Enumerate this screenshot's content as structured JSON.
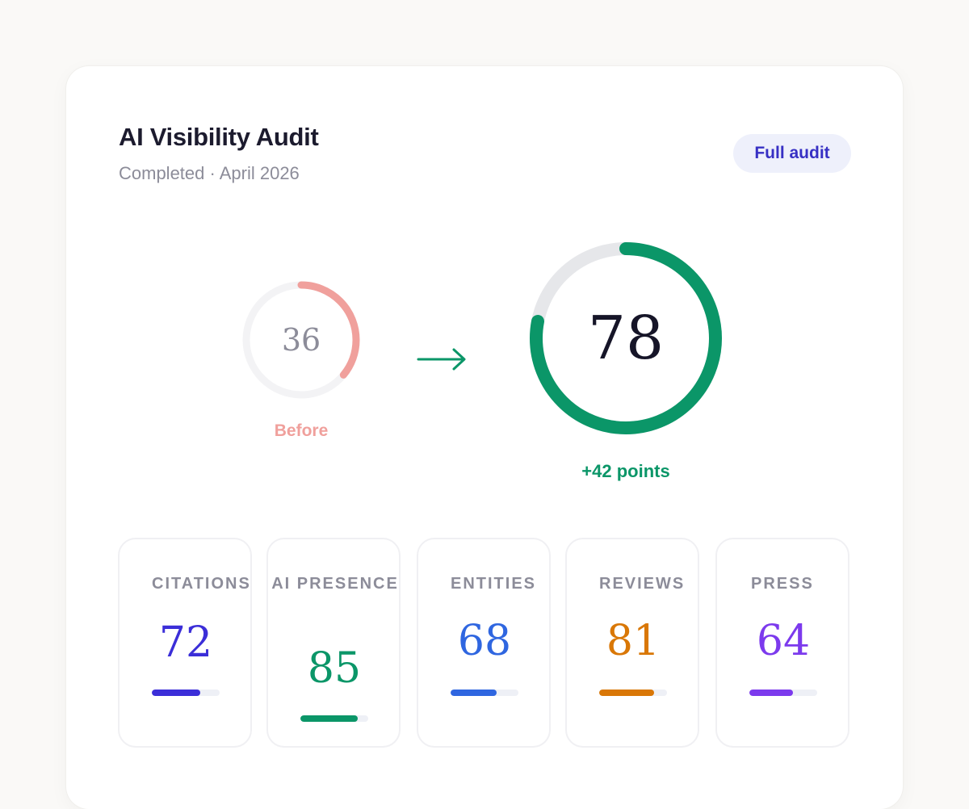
{
  "header": {
    "title": "AI Visibility Audit",
    "subtitle": "Completed · April 2026",
    "badge": "Full audit"
  },
  "scores": {
    "before": {
      "value": "36",
      "label": "Before",
      "fraction": 0.36,
      "color": "#f0a09c"
    },
    "after": {
      "value": "78",
      "label": "+42 points",
      "fraction": 0.78,
      "color": "#0b9668"
    }
  },
  "metrics": [
    {
      "label": "CITATIONS",
      "value": "72",
      "fraction": 0.72,
      "color": "#3b2ed8"
    },
    {
      "label": "AI PRESENCE",
      "value": "85",
      "fraction": 0.85,
      "color": "#0b9668"
    },
    {
      "label": "ENTITIES",
      "value": "68",
      "fraction": 0.68,
      "color": "#2f66e0"
    },
    {
      "label": "REVIEWS",
      "value": "81",
      "fraction": 0.81,
      "color": "#d97706"
    },
    {
      "label": "PRESS",
      "value": "64",
      "fraction": 0.64,
      "color": "#7c3aed"
    }
  ],
  "icons": {
    "arrow": "arrow-right-icon"
  }
}
